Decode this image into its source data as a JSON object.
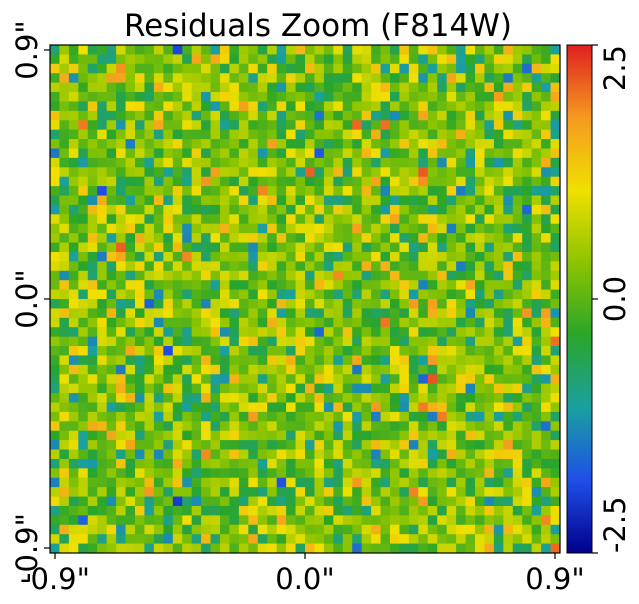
{
  "chart_data": {
    "type": "heatmap",
    "title": "Residuals Zoom (F814W)",
    "xlabel": "",
    "ylabel": "",
    "grid": false,
    "x_ticks": [
      "-0.9\"",
      "0.0\"",
      "0.9\""
    ],
    "y_ticks": [
      "-0.9\"",
      "0.0\"",
      "0.9\""
    ],
    "colorbar": {
      "min": -2.5,
      "max": 2.5,
      "ticks": [
        "-2.5",
        "0.0",
        "2.5"
      ],
      "colors": [
        "#00008b",
        "#1f4fe8",
        "#1aa0a0",
        "#2aa52a",
        "#8cc400",
        "#f0e000",
        "#f59a20",
        "#e02020"
      ]
    },
    "grid_size": [
      54,
      54
    ],
    "pixel_scale_arcsec": 0.034,
    "values": "approx. noise field, values within -2.5..2.5, mean near 0; generated deterministically in script"
  }
}
